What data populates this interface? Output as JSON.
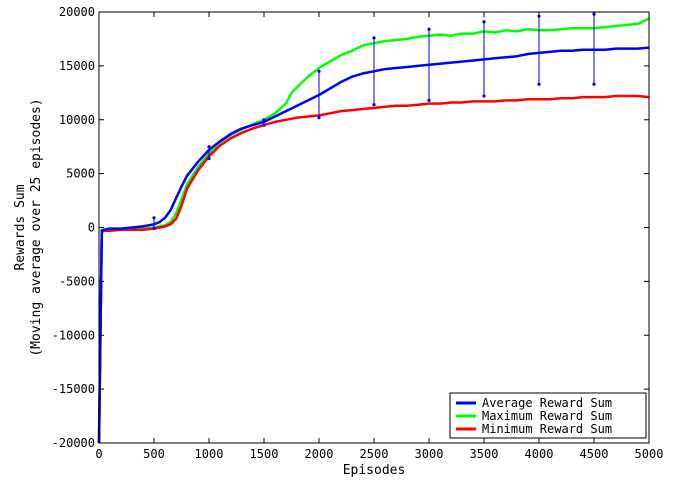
{
  "chart_data": {
    "type": "line",
    "xlabel": "Episodes",
    "ylabel_line1": "Rewards Sum",
    "ylabel_line2": "(Moving average over 25 episodes)",
    "xlim": [
      0,
      5000
    ],
    "ylim": [
      -20000,
      20000
    ],
    "xticks": [
      0,
      500,
      1000,
      1500,
      2000,
      2500,
      3000,
      3500,
      4000,
      4500,
      5000
    ],
    "yticks": [
      -20000,
      -15000,
      -10000,
      -5000,
      0,
      5000,
      10000,
      15000,
      20000
    ],
    "grid": false,
    "legend_position": "bottom-right",
    "series": [
      {
        "name": "Average Reward Sum",
        "color": "#0000ff",
        "x": [
          0,
          25,
          50,
          100,
          200,
          300,
          400,
          500,
          550,
          600,
          650,
          700,
          750,
          800,
          900,
          1000,
          1100,
          1200,
          1300,
          1400,
          1500,
          1600,
          1700,
          1800,
          1900,
          2000,
          2100,
          2200,
          2300,
          2400,
          2500,
          2600,
          2700,
          2800,
          2900,
          3000,
          3100,
          3200,
          3300,
          3400,
          3500,
          3600,
          3700,
          3800,
          3900,
          4000,
          4100,
          4200,
          4300,
          4400,
          4500,
          4600,
          4700,
          4800,
          4900,
          5000
        ],
        "values": [
          -20000,
          -300,
          -200,
          -100,
          -100,
          0,
          100,
          300,
          500,
          900,
          1600,
          2700,
          3800,
          4800,
          6100,
          7200,
          8000,
          8700,
          9200,
          9500,
          9800,
          10300,
          10800,
          11300,
          11800,
          12300,
          12900,
          13500,
          14000,
          14300,
          14500,
          14700,
          14800,
          14900,
          15000,
          15100,
          15200,
          15300,
          15400,
          15500,
          15600,
          15700,
          15800,
          15900,
          16100,
          16200,
          16300,
          16400,
          16400,
          16500,
          16500,
          16500,
          16600,
          16600,
          16600,
          16700
        ]
      },
      {
        "name": "Maximum Reward Sum",
        "color": "#00ff00",
        "x": [
          0,
          25,
          50,
          100,
          200,
          300,
          400,
          500,
          550,
          600,
          650,
          700,
          750,
          800,
          900,
          1000,
          1100,
          1200,
          1300,
          1400,
          1500,
          1600,
          1700,
          1750,
          1800,
          1900,
          2000,
          2100,
          2200,
          2300,
          2400,
          2500,
          2600,
          2700,
          2800,
          2900,
          3000,
          3100,
          3200,
          3300,
          3400,
          3500,
          3600,
          3700,
          3800,
          3900,
          4000,
          4100,
          4200,
          4300,
          4400,
          4500,
          4600,
          4700,
          4800,
          4900,
          5000
        ],
        "values": [
          -20000,
          -200,
          -200,
          -200,
          -200,
          -200,
          -100,
          0,
          100,
          200,
          500,
          1300,
          2600,
          4000,
          5600,
          6900,
          7900,
          8600,
          9100,
          9600,
          10000,
          10600,
          11500,
          12500,
          13000,
          14000,
          14800,
          15400,
          16000,
          16400,
          16900,
          17100,
          17300,
          17400,
          17500,
          17700,
          17800,
          17900,
          17800,
          18000,
          18000,
          18200,
          18100,
          18300,
          18200,
          18400,
          18300,
          18300,
          18400,
          18500,
          18500,
          18500,
          18600,
          18700,
          18800,
          18900,
          19400
        ]
      },
      {
        "name": "Minimum Reward Sum",
        "color": "#ff0000",
        "x": [
          0,
          25,
          50,
          100,
          200,
          300,
          400,
          500,
          550,
          600,
          650,
          700,
          750,
          800,
          900,
          1000,
          1100,
          1200,
          1300,
          1400,
          1500,
          1600,
          1700,
          1800,
          1900,
          2000,
          2100,
          2200,
          2300,
          2400,
          2500,
          2600,
          2700,
          2800,
          2900,
          3000,
          3100,
          3200,
          3300,
          3400,
          3500,
          3600,
          3700,
          3800,
          3900,
          4000,
          4100,
          4200,
          4300,
          4400,
          4500,
          4600,
          4700,
          4800,
          4900,
          5000
        ],
        "values": [
          -20000,
          -400,
          -300,
          -300,
          -200,
          -200,
          -200,
          -100,
          0,
          100,
          300,
          800,
          2000,
          3600,
          5300,
          6600,
          7600,
          8300,
          8800,
          9200,
          9500,
          9800,
          10000,
          10200,
          10300,
          10400,
          10600,
          10800,
          10900,
          11000,
          11100,
          11200,
          11300,
          11300,
          11400,
          11500,
          11500,
          11600,
          11600,
          11700,
          11700,
          11700,
          11800,
          11800,
          11900,
          11900,
          11900,
          12000,
          12000,
          12100,
          12100,
          12100,
          12200,
          12200,
          12200,
          12100
        ]
      }
    ],
    "error_bars": {
      "x": [
        500,
        1000,
        1500,
        2000,
        2500,
        3000,
        3500,
        4000,
        4500
      ],
      "upper": [
        900,
        7500,
        10000,
        14500,
        17600,
        18400,
        19100,
        19600,
        19800
      ],
      "lower": [
        -100,
        6400,
        9500,
        10200,
        11400,
        11800,
        12200,
        13300,
        13300
      ],
      "color": "#0000ff"
    }
  }
}
